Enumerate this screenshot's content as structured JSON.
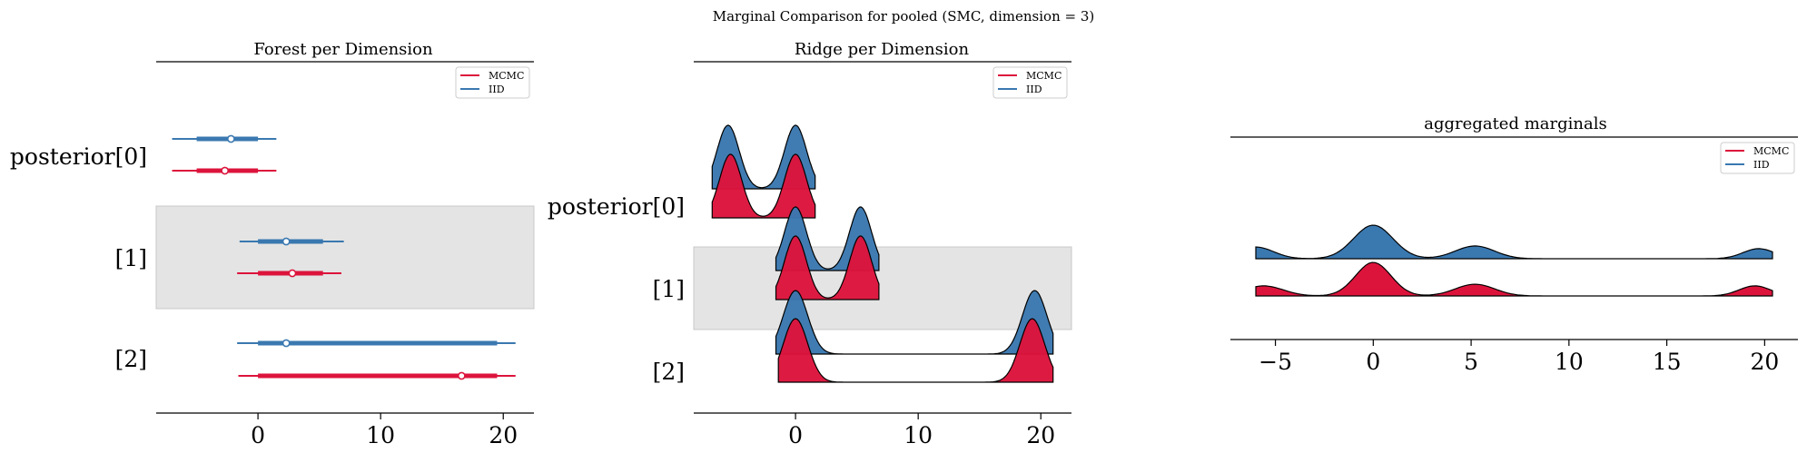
{
  "suptitle": "Marginal Comparison for pooled (SMC, dimension = 3)",
  "colors": {
    "MCMC": "#dc143c",
    "IID": "#3a78b0",
    "band": "#e4e4e4",
    "outline": "#000000"
  },
  "chart_data": [
    {
      "type": "forest",
      "title": "Forest per Dimension",
      "row_labels": [
        "posterior[0]",
        "[1]",
        "[2]"
      ],
      "legend": {
        "location": "top-right",
        "entries": [
          "MCMC",
          "IID"
        ]
      },
      "shaded_rows": [
        1
      ],
      "xticks": [
        0,
        10,
        20
      ],
      "xlim": [
        -8.3,
        22.5
      ],
      "series": [
        {
          "name": "IID",
          "rows": [
            {
              "hdi": [
                -7,
                1.5
              ],
              "iqr": [
                -5,
                0
              ],
              "median": -2.2
            },
            {
              "hdi": [
                -1.5,
                7
              ],
              "iqr": [
                0,
                5.3
              ],
              "median": 2.3
            },
            {
              "hdi": [
                -1.7,
                21
              ],
              "iqr": [
                0,
                19.5
              ],
              "median": 2.3
            }
          ]
        },
        {
          "name": "MCMC",
          "rows": [
            {
              "hdi": [
                -7,
                1.5
              ],
              "iqr": [
                -5,
                0
              ],
              "median": -2.7
            },
            {
              "hdi": [
                -1.7,
                6.8
              ],
              "iqr": [
                0,
                5.3
              ],
              "median": 2.8
            },
            {
              "hdi": [
                -1.6,
                21
              ],
              "iqr": [
                0,
                19.5
              ],
              "median": 16.6
            }
          ]
        }
      ]
    },
    {
      "type": "ridgeplot",
      "title": "Ridge per Dimension",
      "row_labels": [
        "posterior[0]",
        "[1]",
        "[2]"
      ],
      "legend": {
        "location": "top-right",
        "entries": [
          "MCMC",
          "IID"
        ]
      },
      "shaded_rows": [
        1
      ],
      "xticks": [
        0,
        10,
        20
      ],
      "xlim": [
        -8.3,
        22.5
      ],
      "series": [
        {
          "name": "IID",
          "rows": [
            {
              "range": [
                -6.8,
                1.6
              ],
              "modes": [
                [
                  -5.5,
                  1.0,
                  0.9
                ],
                [
                  0,
                  1.0,
                  0.9
                ]
              ]
            },
            {
              "range": [
                -1.6,
                6.8
              ],
              "modes": [
                [
                  0,
                  1.0,
                  0.9
                ],
                [
                  5.3,
                  1.0,
                  0.9
                ]
              ]
            },
            {
              "range": [
                -1.6,
                21
              ],
              "modes": [
                [
                  0,
                  1.0,
                  1.0
                ],
                [
                  19.5,
                  1.0,
                  1.0
                ]
              ]
            }
          ]
        },
        {
          "name": "MCMC",
          "rows": [
            {
              "range": [
                -6.8,
                1.6
              ],
              "modes": [
                [
                  -5.3,
                  1.0,
                  0.9
                ],
                [
                  0,
                  1.0,
                  0.9
                ]
              ]
            },
            {
              "range": [
                -1.6,
                6.8
              ],
              "modes": [
                [
                  0,
                  1.0,
                  0.9
                ],
                [
                  5.3,
                  1.0,
                  0.9
                ]
              ]
            },
            {
              "range": [
                -1.4,
                21
              ],
              "modes": [
                [
                  0,
                  1.0,
                  1.0
                ],
                [
                  19.3,
                  1.0,
                  1.0
                ]
              ]
            }
          ]
        }
      ]
    },
    {
      "type": "ridgeplot",
      "title": "aggregated marginals",
      "legend": {
        "location": "top-right",
        "entries": [
          "MCMC",
          "IID"
        ]
      },
      "xticks": [
        -5,
        0,
        5,
        10,
        15,
        20
      ],
      "xlim": [
        -7.3,
        21.7
      ],
      "series": [
        {
          "name": "IID",
          "range": [
            -6,
            20.4
          ],
          "modes": [
            [
              -6,
              0.35,
              0.9
            ],
            [
              0,
              1.0,
              1.0
            ],
            [
              5.2,
              0.38,
              1.0
            ],
            [
              19.7,
              0.3,
              0.8
            ]
          ]
        },
        {
          "name": "MCMC",
          "range": [
            -6,
            20.4
          ],
          "modes": [
            [
              -5.6,
              0.3,
              1.0
            ],
            [
              0,
              1.0,
              0.9
            ],
            [
              5.2,
              0.35,
              1.0
            ],
            [
              19.5,
              0.3,
              0.8
            ]
          ]
        }
      ]
    }
  ]
}
